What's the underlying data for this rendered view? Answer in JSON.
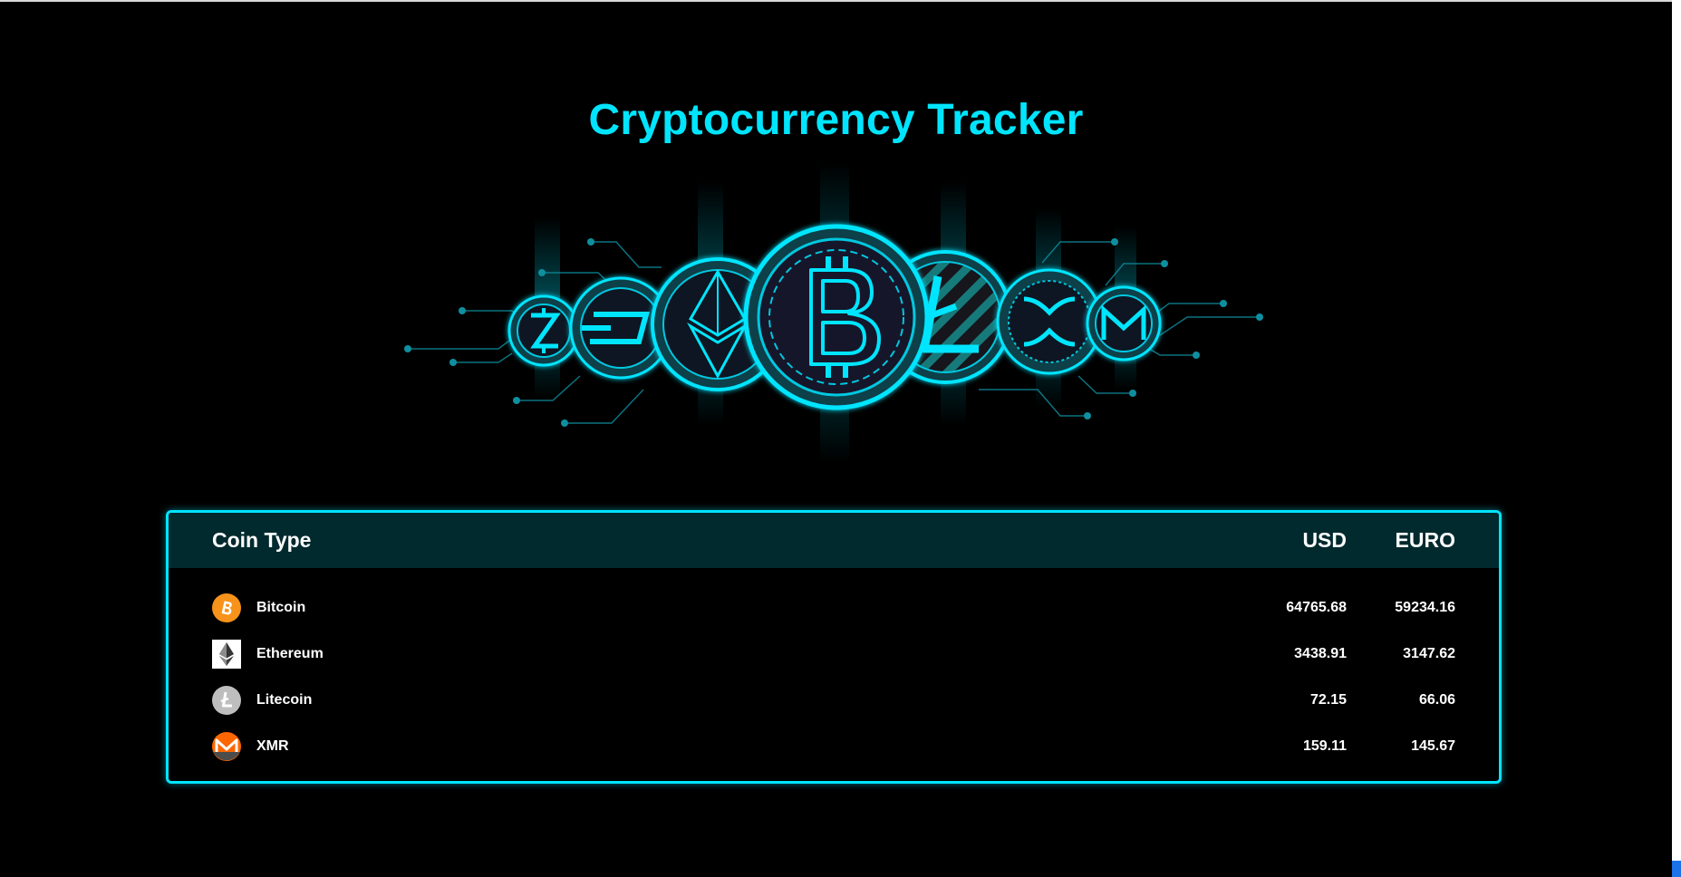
{
  "header": {
    "title": "Cryptocurrency Tracker"
  },
  "banner": {
    "icon": "crypto-coins-illustration",
    "accent": "#00e5ff"
  },
  "table": {
    "columns": {
      "coin": "Coin Type",
      "usd": "USD",
      "euro": "EURO"
    },
    "rows": [
      {
        "name": "Bitcoin",
        "usd": "64765.68",
        "euro": "59234.16",
        "icon": "bitcoin-icon",
        "color": "#f7931a"
      },
      {
        "name": "Ethereum",
        "usd": "3438.91",
        "euro": "3147.62",
        "icon": "ethereum-icon",
        "color": "#ffffff"
      },
      {
        "name": "Litecoin",
        "usd": "72.15",
        "euro": "66.06",
        "icon": "litecoin-icon",
        "color": "#bebebe"
      },
      {
        "name": "XMR",
        "usd": "159.11",
        "euro": "145.67",
        "icon": "monero-icon",
        "color": "#ff6600"
      }
    ]
  }
}
